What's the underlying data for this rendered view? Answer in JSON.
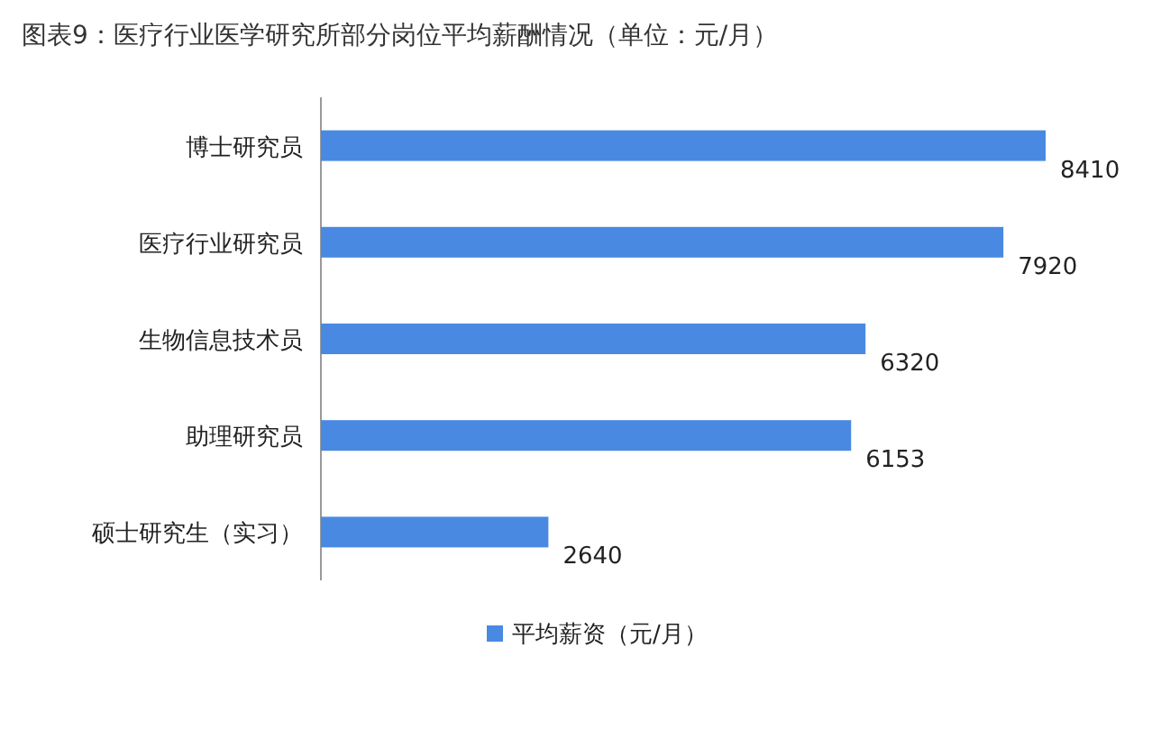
{
  "chart_data": {
    "type": "bar",
    "orientation": "horizontal",
    "title": "图表9：医疗行业医学研究所部分岗位平均薪酬情况（单位：元/月）",
    "categories": [
      "博士研究员",
      "医疗行业研究员",
      "生物信息技术员",
      "助理研究员",
      "硕士研究生（实习）"
    ],
    "series": [
      {
        "name": "平均薪资（元/月）",
        "color": "#4a89e2",
        "values": [
          8410,
          7920,
          6320,
          6153,
          2640
        ]
      }
    ],
    "data_labels": true,
    "legend": "bottom"
  }
}
